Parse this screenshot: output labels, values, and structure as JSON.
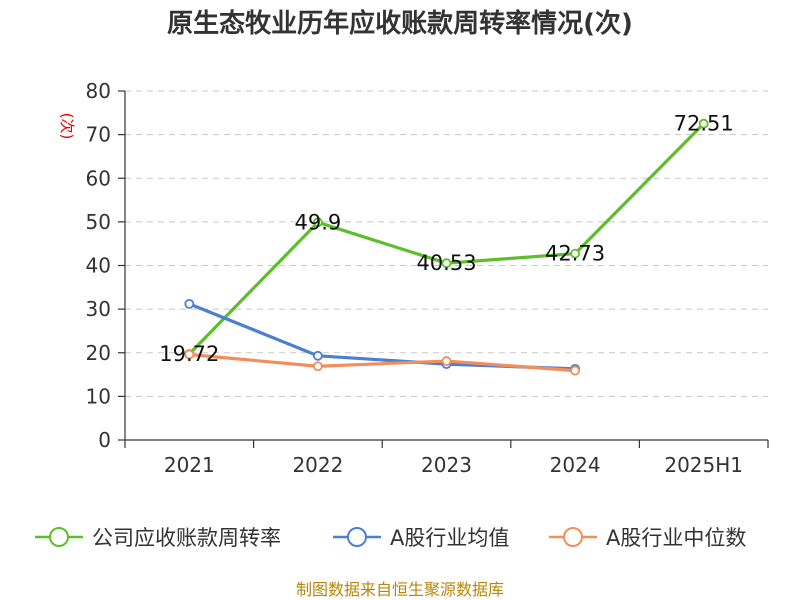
{
  "chart_data": {
    "type": "line",
    "title": "原生态牧业历年应收账款周转率情况(次)",
    "ylabel": "(次)",
    "xlabel": "",
    "categories": [
      "2021",
      "2022",
      "2023",
      "2024",
      "2025H1"
    ],
    "ylim": [
      0,
      80
    ],
    "yticks": [
      0,
      10,
      20,
      30,
      40,
      50,
      60,
      70,
      80
    ],
    "grid": true,
    "legend_position": "bottom",
    "series": [
      {
        "name": "公司应收账款周转率",
        "color": "#5cbf2a",
        "values": [
          19.72,
          49.9,
          40.53,
          42.73,
          72.51
        ],
        "labels": [
          "19.72",
          "49.9",
          "40.53",
          "42.73",
          "72.51"
        ]
      },
      {
        "name": "A股行业均值",
        "color": "#4a7fd4",
        "values": [
          31.2,
          19.3,
          17.4,
          16.3,
          null
        ]
      },
      {
        "name": "A股行业中位数",
        "color": "#f28e5a",
        "values": [
          19.6,
          16.9,
          18.1,
          15.9,
          null
        ]
      }
    ]
  },
  "source_note": "制图数据来自恒生聚源数据库"
}
